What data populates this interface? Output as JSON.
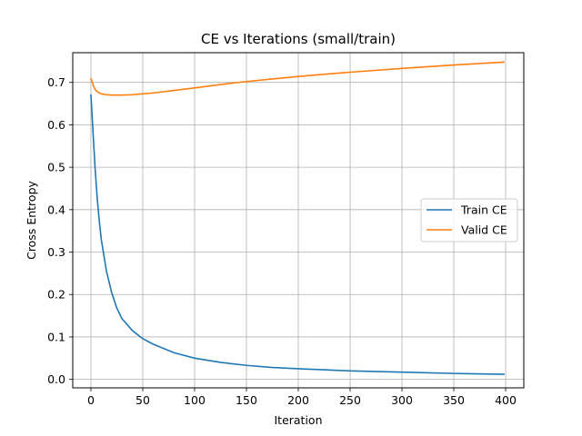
{
  "chart_data": {
    "type": "line",
    "title": "CE vs Iterations (small/train)",
    "xlabel": "Iteration",
    "ylabel": "Cross Entropy",
    "xlim": [
      -17.5,
      417.5
    ],
    "ylim": [
      -0.02,
      0.77
    ],
    "xticks": [
      0,
      50,
      100,
      150,
      200,
      250,
      300,
      350,
      400
    ],
    "yticks": [
      0.0,
      0.1,
      0.2,
      0.3,
      0.4,
      0.5,
      0.6,
      0.7
    ],
    "ytick_labels": [
      "0.0",
      "0.1",
      "0.2",
      "0.3",
      "0.4",
      "0.5",
      "0.6",
      "0.7"
    ],
    "grid": true,
    "legend_position": "center-right",
    "series": [
      {
        "name": "Train CE",
        "color": "#1f77b4",
        "x": [
          0,
          2,
          4,
          6,
          8,
          10,
          15,
          20,
          25,
          30,
          40,
          50,
          60,
          80,
          100,
          125,
          150,
          175,
          200,
          250,
          300,
          350,
          399
        ],
        "y": [
          0.672,
          0.585,
          0.5,
          0.43,
          0.375,
          0.33,
          0.255,
          0.205,
          0.168,
          0.143,
          0.115,
          0.096,
          0.083,
          0.063,
          0.05,
          0.04,
          0.033,
          0.028,
          0.025,
          0.02,
          0.017,
          0.014,
          0.012
        ]
      },
      {
        "name": "Valid CE",
        "color": "#ff7f0e",
        "x": [
          0,
          2,
          4,
          6,
          10,
          15,
          20,
          25,
          30,
          40,
          50,
          60,
          80,
          100,
          125,
          150,
          175,
          200,
          250,
          300,
          350,
          399
        ],
        "y": [
          0.71,
          0.695,
          0.684,
          0.678,
          0.673,
          0.671,
          0.67,
          0.67,
          0.67,
          0.671,
          0.673,
          0.675,
          0.681,
          0.687,
          0.695,
          0.702,
          0.708,
          0.714,
          0.724,
          0.733,
          0.741,
          0.748
        ]
      }
    ]
  }
}
